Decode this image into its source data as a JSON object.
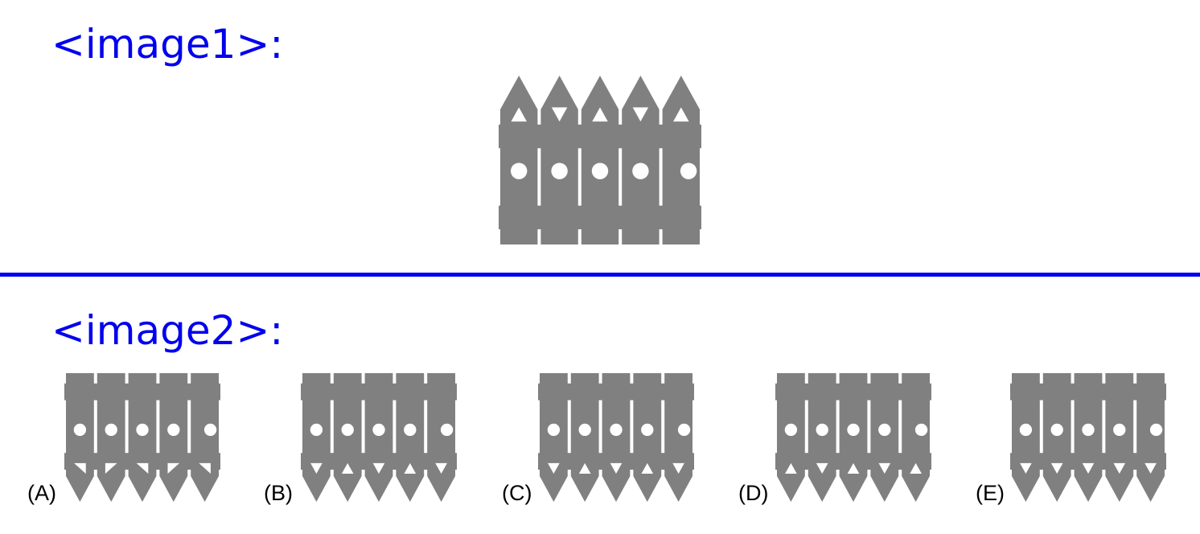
{
  "headings": {
    "image1": "<image1>:",
    "image2": "<image2>:"
  },
  "colors": {
    "heading": "#0000ee",
    "divider": "#0000ee",
    "fence": "#808080",
    "fence_detail": "#ffffff",
    "label": "#000000"
  },
  "image1": {
    "description_key": "reference-fence",
    "picket_count": 5,
    "pointed_end": "top",
    "triangles": [
      "up",
      "down",
      "up",
      "down",
      "up"
    ],
    "circles_per_picket": 1
  },
  "options": [
    {
      "label": "(A)",
      "pointed_end": "bottom",
      "triangles": [
        "down-right",
        "up-left",
        "down-right",
        "up-left",
        "down-right"
      ]
    },
    {
      "label": "(B)",
      "pointed_end": "bottom",
      "triangles": [
        "down",
        "up",
        "down",
        "up",
        "down"
      ]
    },
    {
      "label": "(C)",
      "pointed_end": "bottom",
      "triangles": [
        "down",
        "up",
        "down",
        "up",
        "down"
      ]
    },
    {
      "label": "(D)",
      "pointed_end": "bottom",
      "triangles": [
        "up",
        "down",
        "up",
        "down",
        "up"
      ]
    },
    {
      "label": "(E)",
      "pointed_end": "bottom",
      "triangles": [
        "down",
        "down",
        "down",
        "down",
        "down"
      ]
    }
  ]
}
